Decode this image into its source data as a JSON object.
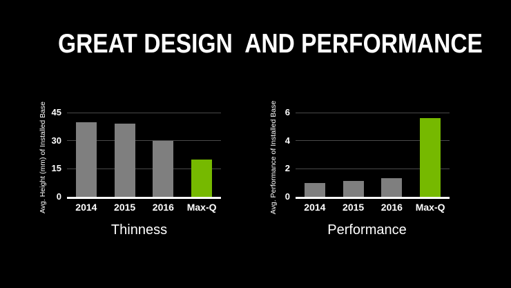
{
  "title": "GREAT DESIGN  AND PERFORMANCE",
  "colors": {
    "background": "#000000",
    "text": "#ffffff",
    "bar_gray": "#7f7f7f",
    "accent_green": "#76b900",
    "gridline": "#4a4a4a",
    "baseline": "#ffffff"
  },
  "chart_data": [
    {
      "type": "bar",
      "title": "Thinness",
      "ylabel": "Avg. Height (mm) of Installed Base",
      "categories": [
        "2014",
        "2015",
        "2016",
        "Max-Q"
      ],
      "values": [
        40,
        39,
        30,
        20
      ],
      "yticks": [
        0,
        15,
        30,
        45
      ],
      "ylim": [
        0,
        45
      ],
      "grid": true,
      "legend": "none",
      "highlight_category": "Max-Q",
      "highlight_index": 3
    },
    {
      "type": "bar",
      "title": "Performance",
      "ylabel": "Avg. Performance of Installed Base",
      "categories": [
        "2014",
        "2015",
        "2016",
        "Max-Q"
      ],
      "values": [
        1.0,
        1.15,
        1.35,
        5.6
      ],
      "yticks": [
        0,
        2,
        4,
        6
      ],
      "ylim": [
        0,
        6
      ],
      "grid": true,
      "legend": "none",
      "highlight_category": "Max-Q",
      "highlight_index": 3
    }
  ]
}
